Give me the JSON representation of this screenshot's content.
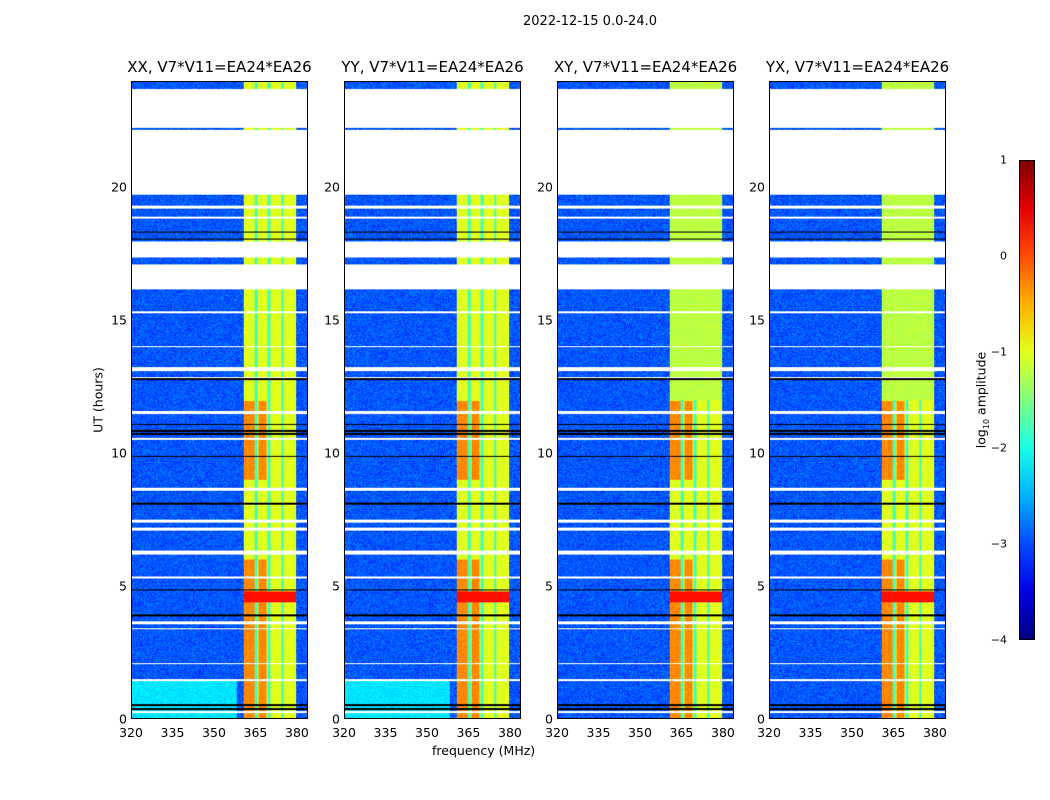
{
  "chart_data": {
    "type": "heatmap",
    "title": "2022-12-15 0.0-24.0",
    "xlabel": "frequency (MHz)",
    "ylabel": "UT (hours)",
    "xlim": [
      320,
      384
    ],
    "ylim": [
      0,
      24
    ],
    "xticks": [
      "320",
      "335",
      "350",
      "365",
      "380"
    ],
    "yticks": [
      "0",
      "5",
      "10",
      "15",
      "20"
    ],
    "panels": [
      {
        "title": "XX, V7*V11=EA24*EA26"
      },
      {
        "title": "YY, V7*V11=EA24*EA26"
      },
      {
        "title": "XY, V7*V11=EA24*EA26"
      },
      {
        "title": "YX, V7*V11=EA24*EA26"
      }
    ],
    "colorbar": {
      "label": "log10 amplitude",
      "label_main": "log",
      "label_sub": "10",
      "label_tail": " amplitude",
      "range": [
        -4,
        1
      ],
      "ticks": [
        "1",
        "0",
        "−1",
        "−2",
        "−3",
        "−4"
      ],
      "colormap": "jet"
    }
  }
}
